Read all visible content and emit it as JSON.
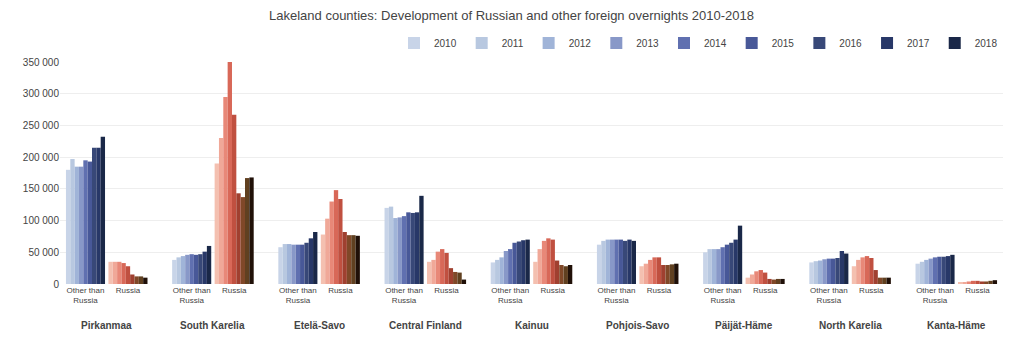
{
  "chart_data": {
    "type": "bar",
    "title": "Lakeland counties: Development of Russian and other foreign overnights 2010-2018",
    "categories": [
      "Other than\nRussia",
      "Russia",
      "Other than\nRussia",
      "Russia",
      "Other than\nRussia",
      "Russia",
      "Other than\nRussia",
      "Russia",
      "Other than\nRussia",
      "Russia",
      "Other than\nRussia",
      "Russia",
      "Other than\nRussia",
      "Russia",
      "Other than\nRussia",
      "Russia",
      "Other than\nRussia",
      "Russia"
    ],
    "annotations": [
      "Pirkanmaa",
      "South Karelia",
      "Etelä-Savo",
      "Central Finland",
      "Kainuu",
      "Pohjois-Savo",
      "Päijät-Häme",
      "North Karelia",
      "Kanta-Häme"
    ],
    "series": [
      {
        "name": "2010",
        "colors": [
          "#c8d4e8",
          "#f4c0b0",
          "#c8d4e8",
          "#f4c0b0",
          "#c8d4e8",
          "#f4c0b0",
          "#c8d4e8",
          "#f4c0b0",
          "#c8d4e8",
          "#f4c0b0",
          "#c8d4e8",
          "#f4c0b0",
          "#c8d4e8",
          "#f4c0b0",
          "#c8d4e8",
          "#f4c0b0",
          "#c8d4e8",
          "#f4c0b0"
        ],
        "values": [
          180000,
          35000,
          38000,
          190000,
          58000,
          78000,
          120000,
          35000,
          34000,
          35000,
          62000,
          28000,
          50000,
          10000,
          34000,
          28000,
          32000,
          2000
        ]
      },
      {
        "name": "2011",
        "colors": [
          "#b8c8e0",
          "#f0a898",
          "#b8c8e0",
          "#f0a898",
          "#b8c8e0",
          "#f0a898",
          "#b8c8e0",
          "#f0a898",
          "#b8c8e0",
          "#f0a898",
          "#b8c8e0",
          "#f0a898",
          "#b8c8e0",
          "#f0a898",
          "#b8c8e0",
          "#f0a898",
          "#b8c8e0",
          "#f0a898"
        ],
        "values": [
          197000,
          35000,
          42000,
          230000,
          63000,
          103000,
          122000,
          38000,
          38000,
          55000,
          68000,
          32000,
          55000,
          15000,
          36000,
          38000,
          35000,
          3000
        ]
      },
      {
        "name": "2012",
        "colors": [
          "#a0b4d8",
          "#e88878",
          "#a0b4d8",
          "#e88878",
          "#a0b4d8",
          "#e88878",
          "#a0b4d8",
          "#e88878",
          "#a0b4d8",
          "#e88878",
          "#a0b4d8",
          "#e88878",
          "#a0b4d8",
          "#e88878",
          "#a0b4d8",
          "#e88878",
          "#a0b4d8",
          "#e88878"
        ],
        "values": [
          185000,
          35000,
          44000,
          295000,
          63000,
          130000,
          104000,
          51000,
          42000,
          68000,
          70000,
          38000,
          55000,
          20000,
          37000,
          42000,
          38000,
          4000
        ]
      },
      {
        "name": "2013",
        "colors": [
          "#8898c8",
          "#d86858",
          "#8898c8",
          "#d86858",
          "#8898c8",
          "#d86858",
          "#8898c8",
          "#d86858",
          "#8898c8",
          "#d86858",
          "#8898c8",
          "#d86858",
          "#8898c8",
          "#d86858",
          "#8898c8",
          "#d86858",
          "#8898c8",
          "#d86858"
        ],
        "values": [
          185000,
          33000,
          46000,
          350000,
          62000,
          148000,
          105000,
          55000,
          52000,
          72000,
          70000,
          42000,
          55000,
          22000,
          39000,
          44000,
          40000,
          5000
        ]
      },
      {
        "name": "2014",
        "colors": [
          "#6070b0",
          "#c05040",
          "#6070b0",
          "#c05040",
          "#6070b0",
          "#c05040",
          "#6070b0",
          "#c05040",
          "#6070b0",
          "#c05040",
          "#6070b0",
          "#c05040",
          "#6070b0",
          "#c05040",
          "#6070b0",
          "#c05040",
          "#6070b0",
          "#c05040"
        ],
        "values": [
          195000,
          28000,
          47000,
          267000,
          62000,
          134000,
          107000,
          49000,
          55000,
          70000,
          70000,
          42000,
          58000,
          18000,
          40000,
          41000,
          42000,
          5000
        ]
      },
      {
        "name": "2015",
        "colors": [
          "#485898",
          "#a04030",
          "#485898",
          "#a04030",
          "#485898",
          "#a04030",
          "#485898",
          "#a04030",
          "#485898",
          "#a04030",
          "#485898",
          "#a04030",
          "#485898",
          "#a04030",
          "#485898",
          "#a04030",
          "#485898",
          "#a04030"
        ],
        "values": [
          193000,
          15000,
          46000,
          143000,
          62000,
          82000,
          113000,
          25000,
          65000,
          37000,
          70000,
          30000,
          62000,
          8000,
          40000,
          22000,
          43000,
          4000
        ]
      },
      {
        "name": "2016",
        "colors": [
          "#384878",
          "#804828",
          "#384878",
          "#804828",
          "#384878",
          "#804828",
          "#384878",
          "#804828",
          "#384878",
          "#804828",
          "#384878",
          "#804828",
          "#384878",
          "#804828",
          "#384878",
          "#804828",
          "#384878",
          "#804828"
        ],
        "values": [
          215000,
          12000,
          47000,
          137000,
          65000,
          77000,
          112000,
          19000,
          67000,
          30000,
          68000,
          30000,
          65000,
          7000,
          41000,
          10000,
          43000,
          4000
        ]
      },
      {
        "name": "2017",
        "colors": [
          "#283868",
          "#604020",
          "#283868",
          "#604020",
          "#283868",
          "#604020",
          "#283868",
          "#604020",
          "#283868",
          "#604020",
          "#283868",
          "#604020",
          "#283868",
          "#604020",
          "#283868",
          "#604020",
          "#283868",
          "#604020"
        ],
        "values": [
          215000,
          12000,
          51000,
          167000,
          72000,
          77000,
          113000,
          18000,
          69000,
          28000,
          70000,
          31000,
          70000,
          8000,
          52000,
          10000,
          44000,
          5000
        ]
      },
      {
        "name": "2018",
        "colors": [
          "#1a2848",
          "#201008",
          "#1a2848",
          "#201008",
          "#1a2848",
          "#201008",
          "#1a2848",
          "#201008",
          "#1a2848",
          "#201008",
          "#1a2848",
          "#201008",
          "#1a2848",
          "#201008",
          "#1a2848",
          "#201008",
          "#1a2848",
          "#201008"
        ],
        "values": [
          232000,
          10000,
          60000,
          168000,
          82000,
          76000,
          139000,
          7000,
          70000,
          30000,
          68000,
          32000,
          92000,
          8000,
          48000,
          10000,
          46000,
          6000
        ]
      }
    ],
    "ylim": [
      0,
      350000
    ],
    "yticks": [
      0,
      {
        "value": 50000,
        "label": "50 000"
      },
      {
        "value": 100000,
        "label": "100 000"
      },
      {
        "value": 150000,
        "label": "150 000"
      },
      {
        "value": 200000,
        "label": "200 000"
      },
      {
        "value": 250000,
        "label": "250 000"
      },
      {
        "value": 300000,
        "label": "300 000"
      },
      {
        "value": 350000,
        "label": "350 000"
      }
    ],
    "grid": true,
    "legend": "upper right"
  }
}
